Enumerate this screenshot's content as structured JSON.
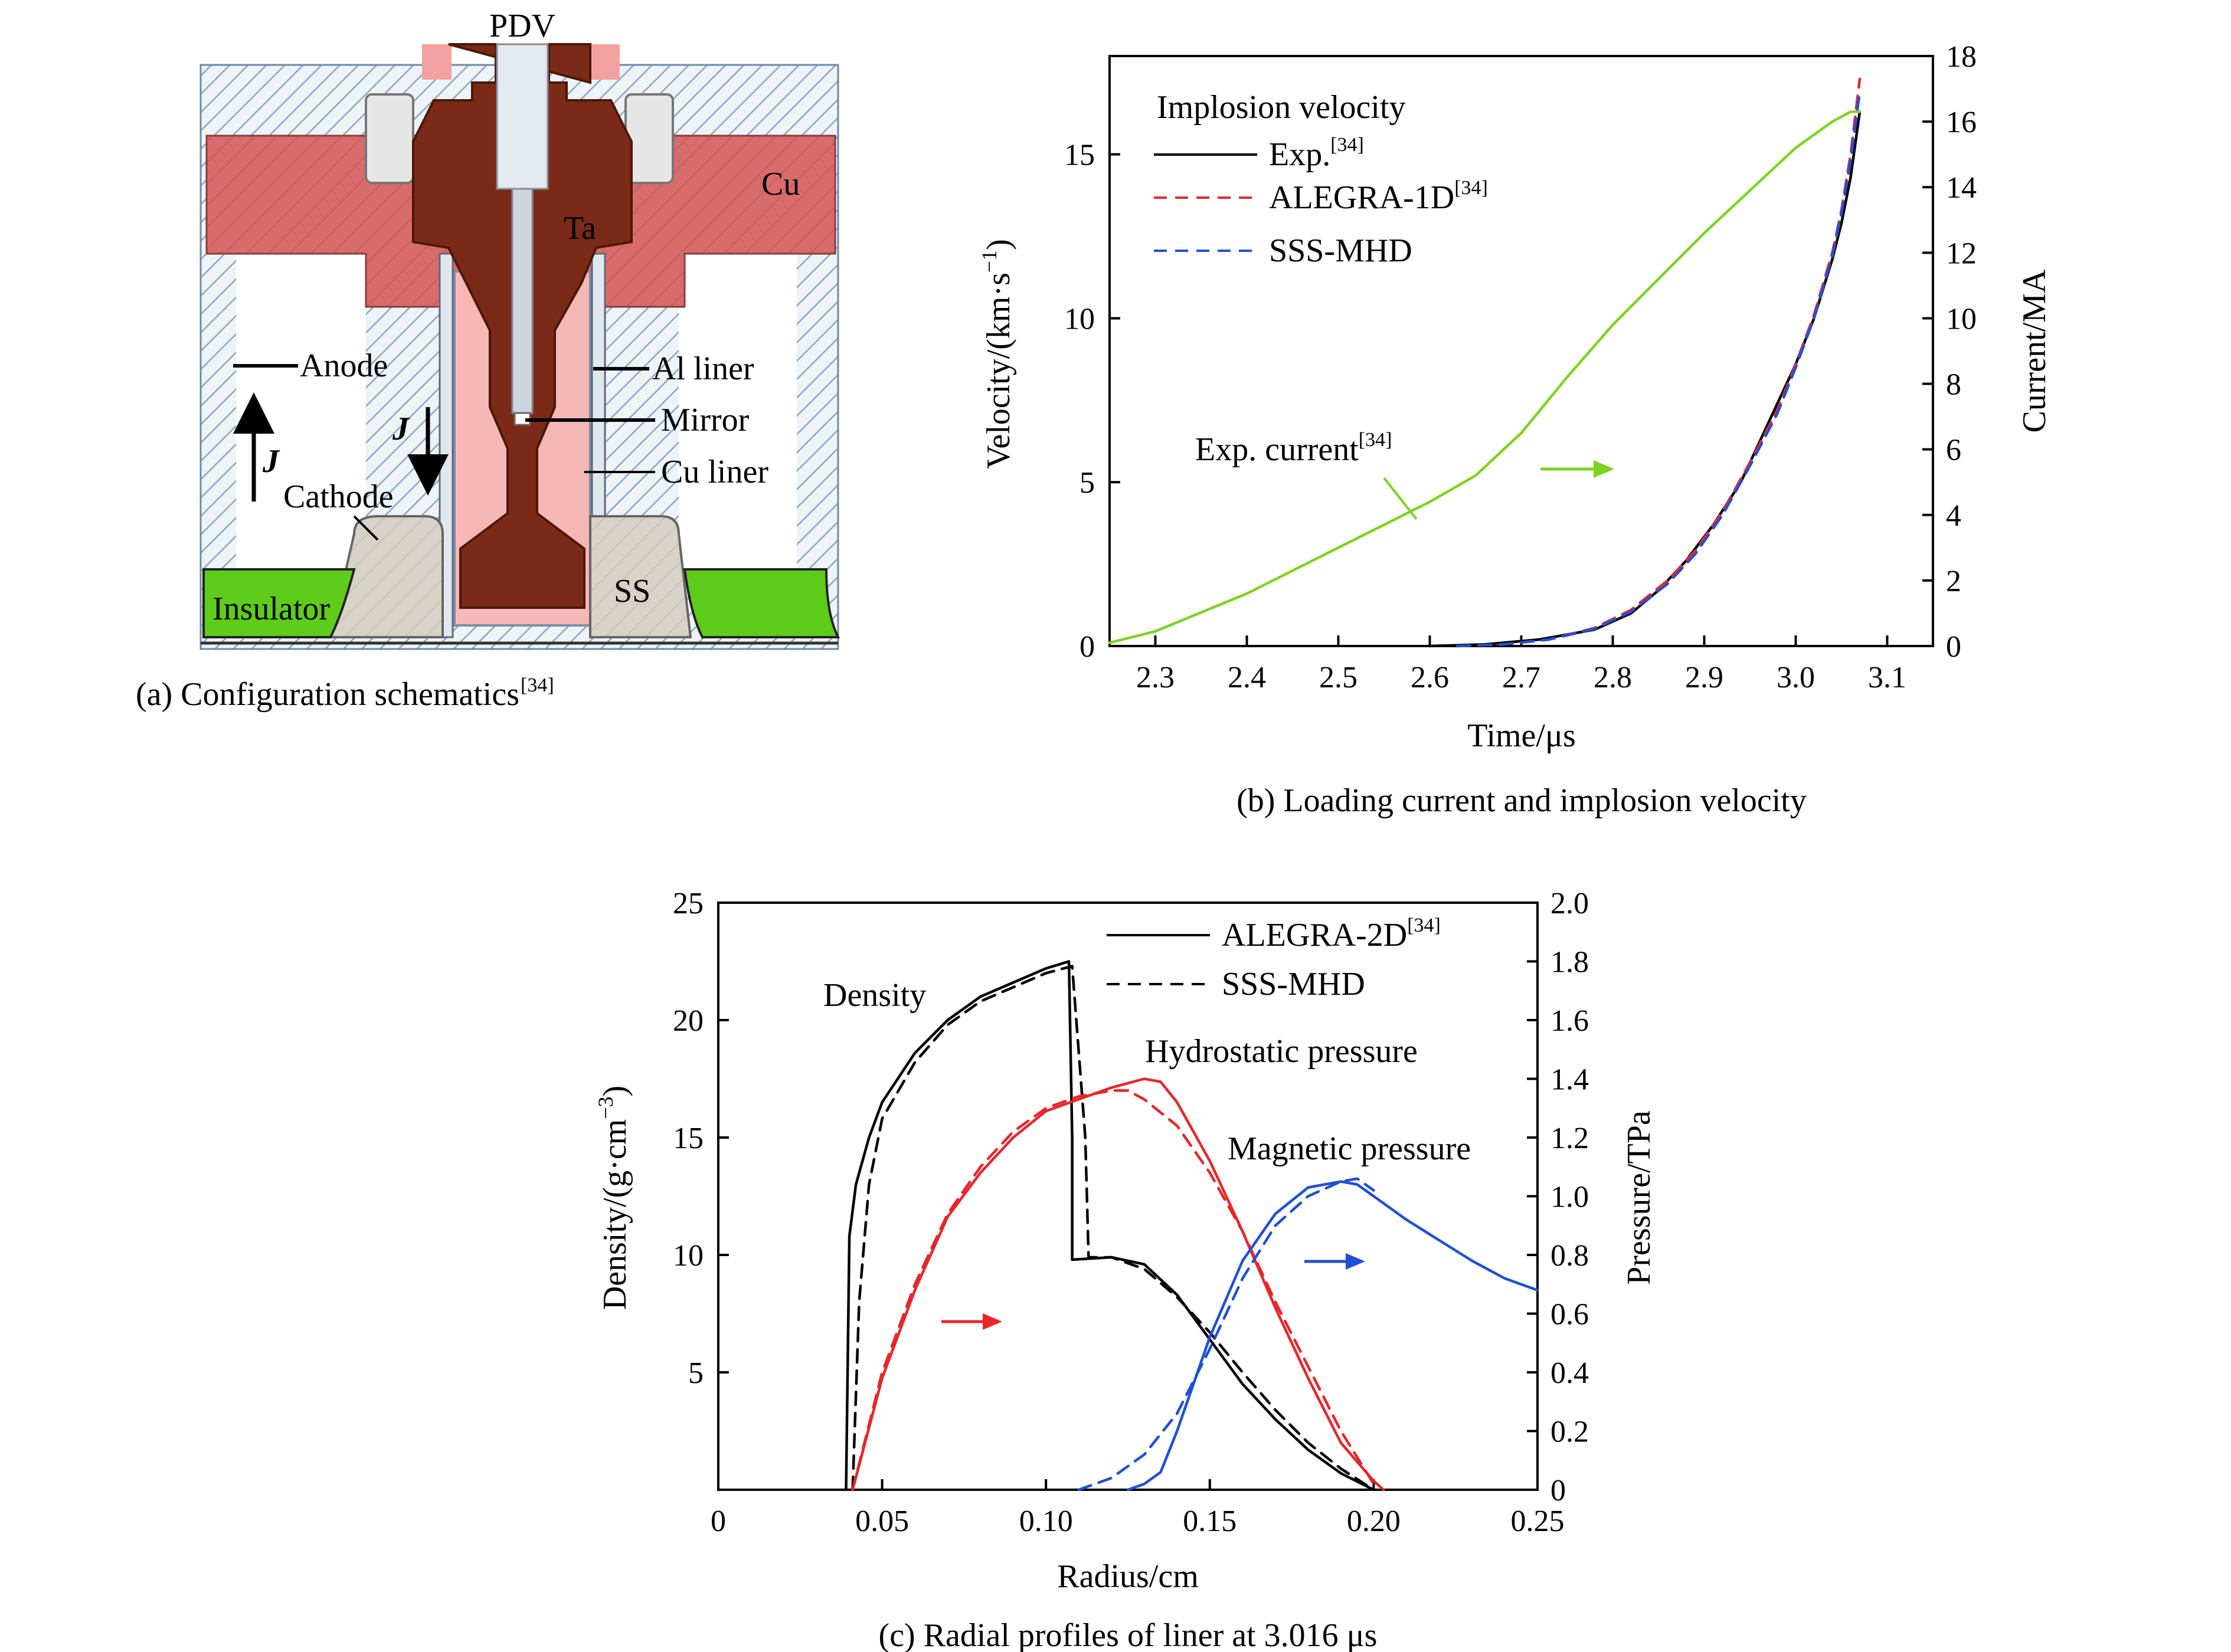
{
  "figure": {
    "caption_a": "(a) Configuration schematics",
    "caption_a_ref": "[34]",
    "caption_b": "(b) Loading current and implosion velocity",
    "caption_c": "(c) Radial profiles of liner at 3.016 μs"
  },
  "schematic": {
    "labels": {
      "pdv": "PDV",
      "cu": "Cu",
      "ta": "Ta",
      "anode": "Anode",
      "al_liner": "Al liner",
      "mirror": "Mirror",
      "cu_liner": "Cu liner",
      "cathode": "Cathode",
      "insulator": "Insulator",
      "ss": "SS",
      "j": "J"
    },
    "colors": {
      "copper": "#d86b6b",
      "tantalum": "#7a2a16",
      "insulator": "#5ecc1a",
      "steel": "#d8d3c8",
      "liner": "#f6b7b7"
    }
  },
  "chart_data": [
    {
      "id": "b",
      "type": "line",
      "xlabel": "Time/μs",
      "ylabel": "Velocity/(km·s",
      "ylabel_sup": "−1",
      "ylabel_end": ")",
      "y2label": "Current/MA",
      "xlim": [
        2.25,
        3.15
      ],
      "ylim": [
        0,
        18
      ],
      "y2lim": [
        0,
        18
      ],
      "xticks": [
        2.3,
        2.4,
        2.5,
        2.6,
        2.7,
        2.8,
        2.9,
        3.0,
        3.1
      ],
      "xtick_labels": [
        "2.3",
        "2.4",
        "2.5",
        "2.6",
        "2.7",
        "2.8",
        "2.9",
        "3.0",
        "3.1"
      ],
      "yticks": [
        0,
        5,
        10,
        15
      ],
      "ytick_labels": [
        "0",
        "5",
        "10",
        "15"
      ],
      "y2ticks": [
        0,
        2,
        4,
        6,
        8,
        10,
        12,
        14,
        16,
        18
      ],
      "y2tick_labels": [
        "0",
        "2",
        "4",
        "6",
        "8",
        "10",
        "12",
        "14",
        "16",
        "18"
      ],
      "legend_title": "Implosion velocity",
      "legend_position": "top-left",
      "annotation": "Exp. current",
      "annotation_ref": "[34]",
      "series": [
        {
          "name": "Exp.",
          "ref": "[34]",
          "color": "#000000",
          "dash": "solid",
          "axis": "left",
          "x": [
            2.6,
            2.66,
            2.72,
            2.78,
            2.82,
            2.85,
            2.88,
            2.91,
            2.94,
            2.97,
            3.0,
            3.02,
            3.04,
            3.05,
            3.06,
            3.07
          ],
          "y": [
            0,
            0.05,
            0.2,
            0.5,
            1.0,
            1.7,
            2.6,
            3.7,
            5.0,
            6.8,
            8.6,
            10.0,
            11.8,
            12.9,
            14.3,
            16.3
          ]
        },
        {
          "name": "ALEGRA-1D",
          "ref": "[34]",
          "color": "#e8262a",
          "dash": "dashed",
          "axis": "left",
          "x": [
            2.63,
            2.68,
            2.73,
            2.78,
            2.82,
            2.86,
            2.89,
            2.92,
            2.95,
            2.98,
            3.0,
            3.02,
            3.04,
            3.05,
            3.06,
            3.07
          ],
          "y": [
            0,
            0.05,
            0.2,
            0.55,
            1.1,
            2.0,
            2.9,
            4.1,
            5.6,
            7.2,
            8.6,
            10.1,
            12.0,
            13.3,
            15.0,
            17.3
          ]
        },
        {
          "name": "SSS-MHD",
          "ref": "",
          "color": "#1f4fd6",
          "dash": "dashed",
          "axis": "left",
          "x": [
            2.63,
            2.68,
            2.73,
            2.78,
            2.82,
            2.86,
            2.89,
            2.92,
            2.95,
            2.98,
            3.0,
            3.02,
            3.04,
            3.05,
            3.06,
            3.07
          ],
          "y": [
            0,
            0.05,
            0.2,
            0.52,
            1.05,
            1.9,
            2.8,
            4.0,
            5.5,
            7.1,
            8.5,
            10.0,
            11.9,
            13.2,
            14.8,
            16.9
          ]
        },
        {
          "name": "Exp. current",
          "ref": "[34]",
          "color": "#7ed321",
          "dash": "solid",
          "axis": "right",
          "x": [
            2.25,
            2.3,
            2.4,
            2.5,
            2.6,
            2.65,
            2.7,
            2.75,
            2.8,
            2.9,
            3.0,
            3.04,
            3.06,
            3.07
          ],
          "y": [
            0.1,
            0.45,
            1.6,
            3.0,
            4.4,
            5.2,
            6.5,
            8.2,
            9.8,
            12.6,
            15.2,
            16.0,
            16.3,
            16.3
          ]
        }
      ]
    },
    {
      "id": "c",
      "type": "line",
      "xlabel": "Radius/cm",
      "ylabel": "Density/(g·cm",
      "ylabel_sup": "−3",
      "ylabel_end": ")",
      "y2label": "Pressure/TPa",
      "xlim": [
        0,
        0.25
      ],
      "ylim": [
        0,
        25
      ],
      "y2lim": [
        0,
        2.0
      ],
      "xticks": [
        0,
        0.05,
        0.1,
        0.15,
        0.2,
        0.25
      ],
      "xtick_labels": [
        "0",
        "0.05",
        "0.10",
        "0.15",
        "0.20",
        "0.25"
      ],
      "yticks": [
        5,
        10,
        15,
        20,
        25
      ],
      "ytick_labels": [
        "5",
        "10",
        "15",
        "20",
        "25"
      ],
      "y2ticks": [
        0,
        0.2,
        0.4,
        0.6,
        0.8,
        1.0,
        1.2,
        1.4,
        1.6,
        1.8,
        2.0
      ],
      "y2tick_labels": [
        "0",
        "0.2",
        "0.4",
        "0.6",
        "0.8",
        "1.0",
        "1.2",
        "1.4",
        "1.6",
        "1.8",
        "2.0"
      ],
      "legend_position": "top-right",
      "annotations": [
        "Density",
        "Hydrostatic pressure",
        "Magnetic pressure"
      ],
      "series": [
        {
          "name": "ALEGRA-2D",
          "ref": "[34]",
          "color": "#000000",
          "dash": "solid",
          "axis": "left",
          "x": [
            0.039,
            0.04,
            0.042,
            0.046,
            0.05,
            0.06,
            0.07,
            0.08,
            0.09,
            0.1,
            0.107,
            0.108,
            0.108,
            0.12,
            0.13,
            0.14,
            0.15,
            0.16,
            0.17,
            0.18,
            0.19,
            0.2
          ],
          "y": [
            0,
            10.8,
            13.0,
            15.0,
            16.5,
            18.6,
            20.0,
            21.0,
            21.6,
            22.2,
            22.5,
            15.0,
            9.8,
            9.9,
            9.6,
            8.3,
            6.4,
            4.5,
            3.0,
            1.7,
            0.7,
            0
          ]
        },
        {
          "name": "SSS-MHD",
          "ref": "",
          "color": "#000000",
          "dash": "dashed",
          "axis": "left",
          "x": [
            0.041,
            0.043,
            0.046,
            0.05,
            0.06,
            0.07,
            0.08,
            0.09,
            0.1,
            0.108,
            0.112,
            0.113,
            0.12,
            0.13,
            0.14,
            0.15,
            0.16,
            0.17,
            0.18,
            0.19,
            0.2
          ],
          "y": [
            0,
            8.0,
            13.0,
            15.8,
            18.2,
            19.8,
            20.8,
            21.4,
            22.0,
            22.3,
            15.0,
            9.9,
            9.9,
            9.4,
            8.2,
            6.7,
            5.0,
            3.4,
            2.0,
            0.9,
            0
          ]
        },
        {
          "name": "Hydrostatic pressure (ALEGRA-2D)",
          "ref": "",
          "color": "#e8262a",
          "dash": "solid",
          "axis": "right",
          "x": [
            0.041,
            0.05,
            0.06,
            0.07,
            0.08,
            0.09,
            0.1,
            0.11,
            0.12,
            0.13,
            0.135,
            0.14,
            0.15,
            0.16,
            0.17,
            0.18,
            0.19,
            0.2,
            0.203
          ],
          "y": [
            0,
            0.38,
            0.68,
            0.93,
            1.08,
            1.2,
            1.29,
            1.33,
            1.37,
            1.4,
            1.39,
            1.32,
            1.12,
            0.88,
            0.62,
            0.38,
            0.16,
            0.03,
            0
          ]
        },
        {
          "name": "Hydrostatic pressure (SSS-MHD)",
          "ref": "",
          "color": "#e8262a",
          "dash": "dashed",
          "axis": "right",
          "x": [
            0.041,
            0.05,
            0.06,
            0.07,
            0.08,
            0.09,
            0.1,
            0.11,
            0.12,
            0.125,
            0.13,
            0.14,
            0.15,
            0.16,
            0.17,
            0.18,
            0.19,
            0.2
          ],
          "y": [
            0,
            0.4,
            0.7,
            0.94,
            1.1,
            1.22,
            1.3,
            1.34,
            1.36,
            1.36,
            1.33,
            1.24,
            1.08,
            0.88,
            0.64,
            0.42,
            0.2,
            0.02
          ]
        },
        {
          "name": "Magnetic pressure (ALEGRA-2D)",
          "ref": "",
          "color": "#1f4fd6",
          "dash": "solid",
          "axis": "right",
          "x": [
            0.125,
            0.13,
            0.135,
            0.14,
            0.15,
            0.16,
            0.17,
            0.18,
            0.19,
            0.195,
            0.2,
            0.21,
            0.22,
            0.23,
            0.24,
            0.25
          ],
          "y": [
            0,
            0.02,
            0.06,
            0.2,
            0.52,
            0.78,
            0.94,
            1.03,
            1.05,
            1.04,
            1.0,
            0.92,
            0.85,
            0.78,
            0.72,
            0.68
          ]
        },
        {
          "name": "Magnetic pressure (SSS-MHD)",
          "ref": "",
          "color": "#1f4fd6",
          "dash": "dashed",
          "axis": "right",
          "x": [
            0.11,
            0.12,
            0.13,
            0.14,
            0.15,
            0.16,
            0.17,
            0.18,
            0.19,
            0.195,
            0.2
          ],
          "y": [
            0,
            0.04,
            0.12,
            0.26,
            0.48,
            0.72,
            0.9,
            1.0,
            1.05,
            1.06,
            1.02
          ]
        }
      ],
      "legend_entries": [
        {
          "name": "ALEGRA-2D",
          "ref": "[34]",
          "dash": "solid"
        },
        {
          "name": "SSS-MHD",
          "ref": "",
          "dash": "dashed"
        }
      ]
    }
  ]
}
